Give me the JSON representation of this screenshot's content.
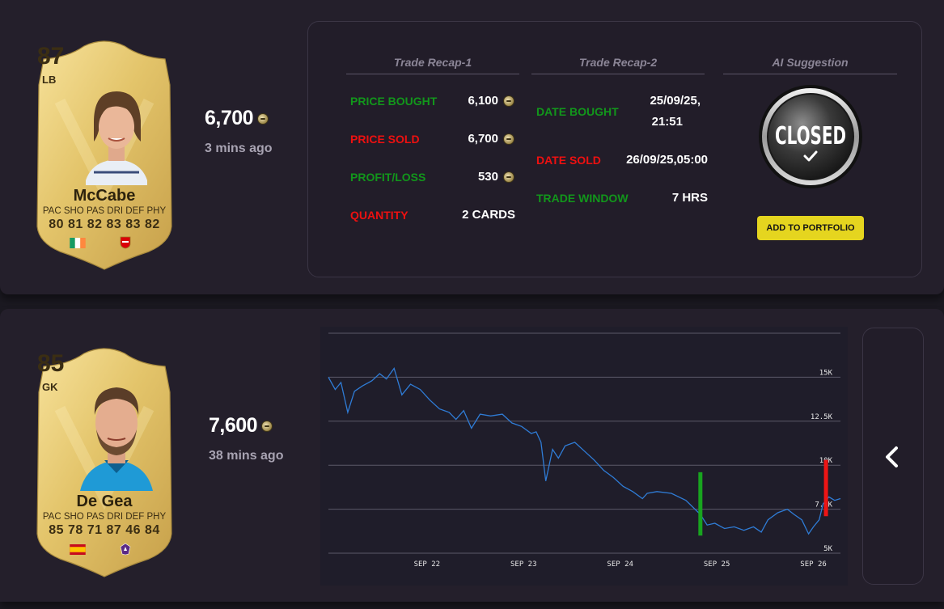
{
  "trades": [
    {
      "card": {
        "rating": "87",
        "position": "LB",
        "name": "McCabe",
        "stat_labels": "PAC SHO PAS DRI DEF PHY",
        "stat_values": "80 81 82 83 83 82",
        "nation": "Ireland",
        "club": "Arsenal"
      },
      "price": "6,700",
      "time_ago": "3 mins ago",
      "expand_icon": "chevron-right-icon",
      "recap1": {
        "title": "Trade Recap-1",
        "price_bought_label": "PRICE BOUGHT",
        "price_bought": "6,100",
        "price_sold_label": "PRICE SOLD",
        "price_sold": "6,700",
        "profit_label": "PROFIT/LOSS",
        "profit": "530",
        "quantity_label": "QUANTITY",
        "quantity": "2 CARDS"
      },
      "recap2": {
        "title": "Trade Recap-2",
        "date_bought_label": "DATE BOUGHT",
        "date_bought_line1": "25/09/25,",
        "date_bought_line2": "21:51",
        "date_sold_label": "DATE SOLD",
        "date_sold": "26/09/25,05:00",
        "window_label": "TRADE WINDOW",
        "window": "7 HRS"
      },
      "ai": {
        "title": "AI Suggestion",
        "badge": "CLOSED",
        "button": "ADD TO PORTFOLIO"
      }
    },
    {
      "card": {
        "rating": "85",
        "position": "GK",
        "name": "De Gea",
        "stat_labels": "PAC SHO PAS DRI DEF PHY",
        "stat_values": "85 78 71 87 46 84",
        "nation": "Spain",
        "club": "Fiorentina"
      },
      "price": "7,600",
      "time_ago": "38 mins ago",
      "collapse_icon": "chevron-left-icon"
    }
  ],
  "chart_data": {
    "type": "line",
    "title": "",
    "x_ticks": [
      "SEP 22",
      "SEP 23",
      "SEP 24",
      "SEP 25",
      "SEP 26"
    ],
    "y_ticks": [
      "5K",
      "7.5K",
      "10K",
      "12.5K",
      "15K"
    ],
    "ylim": [
      5000,
      17500
    ],
    "x_range_days": [
      21.0,
      26.3
    ],
    "series": [
      {
        "name": "price",
        "color": "#2f7cd6",
        "points": [
          [
            21.0,
            15000
          ],
          [
            21.07,
            14300
          ],
          [
            21.13,
            14700
          ],
          [
            21.2,
            13000
          ],
          [
            21.27,
            14200
          ],
          [
            21.35,
            14500
          ],
          [
            21.45,
            14800
          ],
          [
            21.53,
            15200
          ],
          [
            21.6,
            14900
          ],
          [
            21.68,
            15500
          ],
          [
            21.76,
            14000
          ],
          [
            21.85,
            14600
          ],
          [
            21.95,
            14300
          ],
          [
            22.05,
            13700
          ],
          [
            22.15,
            13200
          ],
          [
            22.25,
            13000
          ],
          [
            22.32,
            12600
          ],
          [
            22.4,
            13100
          ],
          [
            22.48,
            12100
          ],
          [
            22.57,
            12900
          ],
          [
            22.68,
            12800
          ],
          [
            22.8,
            12900
          ],
          [
            22.9,
            12400
          ],
          [
            23.0,
            12200
          ],
          [
            23.1,
            11800
          ],
          [
            23.15,
            11900
          ],
          [
            23.2,
            11300
          ],
          [
            23.25,
            9100
          ],
          [
            23.32,
            10900
          ],
          [
            23.38,
            10400
          ],
          [
            23.45,
            11100
          ],
          [
            23.55,
            11300
          ],
          [
            23.65,
            10800
          ],
          [
            23.75,
            10300
          ],
          [
            23.85,
            9700
          ],
          [
            23.95,
            9300
          ],
          [
            24.05,
            8800
          ],
          [
            24.15,
            8500
          ],
          [
            24.25,
            8100
          ],
          [
            24.3,
            8400
          ],
          [
            24.4,
            8500
          ],
          [
            24.55,
            8400
          ],
          [
            24.7,
            8000
          ],
          [
            24.85,
            7200
          ],
          [
            24.92,
            6600
          ],
          [
            25.0,
            6700
          ],
          [
            25.1,
            6400
          ],
          [
            25.2,
            6500
          ],
          [
            25.3,
            6300
          ],
          [
            25.4,
            6500
          ],
          [
            25.48,
            6200
          ],
          [
            25.55,
            6900
          ],
          [
            25.65,
            7300
          ],
          [
            25.75,
            7500
          ],
          [
            25.82,
            7200
          ],
          [
            25.9,
            6900
          ],
          [
            25.97,
            6100
          ],
          [
            26.02,
            6500
          ],
          [
            26.08,
            6900
          ],
          [
            26.12,
            7800
          ],
          [
            26.18,
            8200
          ],
          [
            26.24,
            8000
          ],
          [
            26.3,
            8100
          ]
        ]
      }
    ],
    "markers": [
      {
        "type": "buy",
        "color": "#18a41f",
        "x": 24.85,
        "low": 6000,
        "high": 9600
      },
      {
        "type": "sell",
        "color": "#ee1515",
        "x": 26.15,
        "low": 7100,
        "high": 10300
      }
    ]
  }
}
